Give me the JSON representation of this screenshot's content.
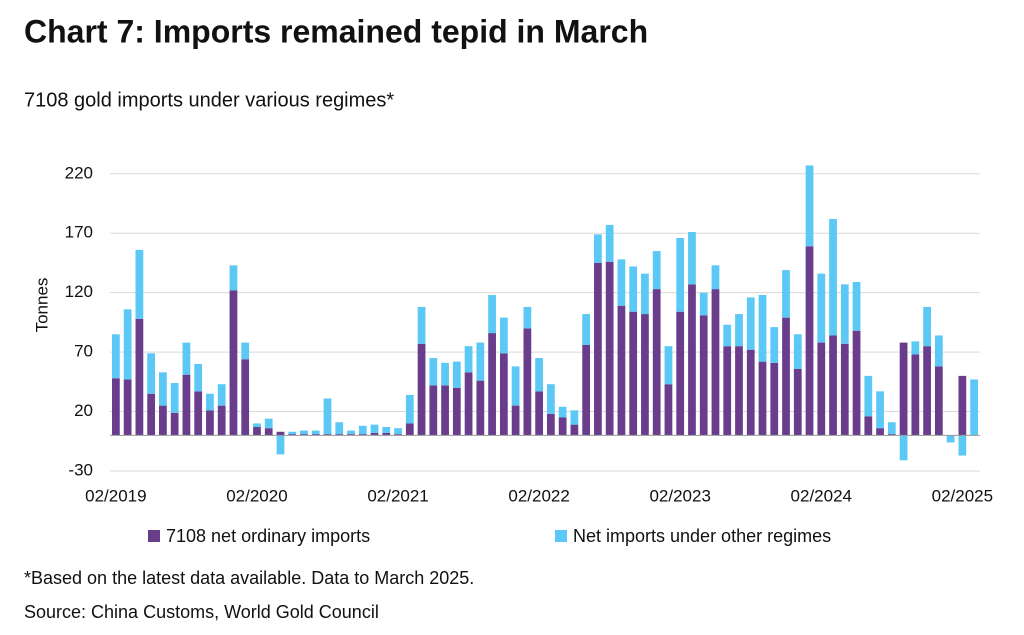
{
  "chart_data": {
    "type": "stacked_bar",
    "title": "Chart 7: Imports remained tepid in March",
    "subtitle": "7108 gold imports under various regimes*",
    "y_label": "Tonnes",
    "notes": [
      "*Based on the latest data available. Data to March 2025.",
      "Source: China Customs, World Gold Council"
    ],
    "categories": [
      "02/2019",
      null,
      null,
      null,
      null,
      null,
      null,
      null,
      null,
      null,
      null,
      null,
      "02/2020",
      null,
      null,
      null,
      null,
      null,
      null,
      null,
      null,
      null,
      null,
      null,
      "02/2021",
      null,
      null,
      null,
      null,
      null,
      null,
      null,
      null,
      null,
      null,
      null,
      "02/2022",
      null,
      null,
      null,
      null,
      null,
      null,
      null,
      null,
      null,
      null,
      null,
      "02/2023",
      null,
      null,
      null,
      null,
      null,
      null,
      null,
      null,
      null,
      null,
      null,
      "02/2024",
      null,
      null,
      null,
      null,
      null,
      null,
      null,
      null,
      null,
      null,
      null,
      "02/2025",
      null
    ],
    "series": [
      {
        "name": "7108 net ordinary imports",
        "color": "#6a3d8c",
        "values": [
          48,
          47,
          98,
          35,
          25,
          19,
          51,
          37,
          21,
          25,
          122,
          64,
          7,
          6,
          3,
          1,
          1,
          1,
          1,
          1,
          1,
          1,
          2,
          2,
          1,
          10,
          77,
          42,
          42,
          40,
          53,
          46,
          86,
          69,
          25,
          90,
          37,
          18,
          15,
          9,
          76,
          145,
          146,
          109,
          104,
          102,
          123,
          43,
          104,
          127,
          101,
          123,
          75,
          75,
          72,
          62,
          61,
          99,
          56,
          159,
          78,
          84,
          77,
          88,
          16,
          6,
          1,
          78,
          68,
          75,
          58,
          0,
          50,
          0
        ]
      },
      {
        "name": "Net imports under other regimes",
        "color": "#5bc8f5",
        "values": [
          37,
          59,
          58,
          34,
          28,
          25,
          27,
          23,
          14,
          18,
          21,
          14,
          3,
          8,
          -16,
          2,
          3,
          3,
          30,
          10,
          3,
          7,
          7,
          5,
          5,
          24,
          31,
          23,
          19,
          22,
          22,
          32,
          32,
          30,
          33,
          18,
          28,
          25,
          9,
          12,
          26,
          24,
          31,
          39,
          38,
          34,
          32,
          32,
          62,
          44,
          19,
          20,
          18,
          27,
          44,
          56,
          30,
          40,
          29,
          68,
          58,
          98,
          50,
          41,
          34,
          31,
          10,
          -21,
          11,
          33,
          26,
          -6,
          -17,
          47
        ]
      }
    ],
    "ylim": [
      -30,
      240
    ],
    "yticks": [
      -30,
      20,
      70,
      120,
      170,
      220
    ],
    "grid": true,
    "legend": "bottom"
  }
}
